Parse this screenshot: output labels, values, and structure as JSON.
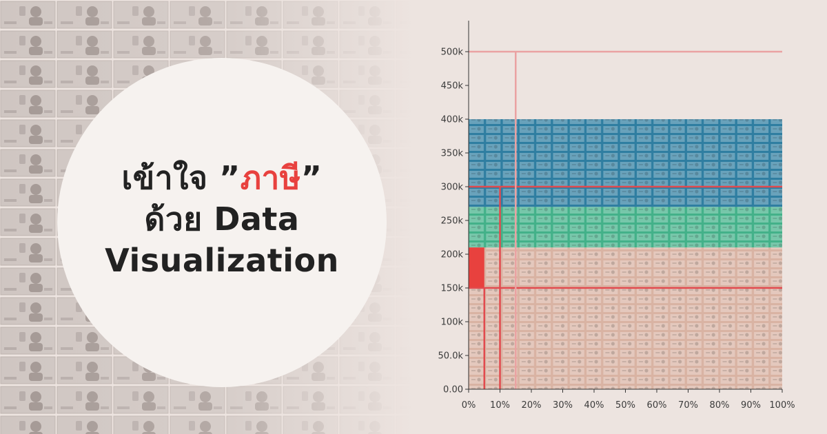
{
  "headline": {
    "line1_prefix": "เข้าใจ ”",
    "line1_accent": "ภาษี",
    "line1_suffix": "”",
    "line2": "ด้วย Data",
    "line3": "Visualization"
  },
  "colors": {
    "background": "#ede4e0",
    "circle": "#f6f2ef",
    "headline_text": "#222222",
    "accent_red": "#e8413e",
    "band_blue": "#2f7ea1",
    "band_green": "#43b189",
    "band_pink": "#d9b3a3",
    "grid_line": "#e24a4e",
    "grid_line_light": "#eaa2a2"
  },
  "chart_data": {
    "type": "area",
    "ylim": [
      0,
      500000
    ],
    "xlim": [
      0,
      100
    ],
    "y_ticks": [
      "0.00",
      "50.0k",
      "100k",
      "150k",
      "200k",
      "250k",
      "300k",
      "350k",
      "400k",
      "450k",
      "500k"
    ],
    "x_ticks": [
      "0%",
      "10%",
      "20%",
      "30%",
      "40%",
      "50%",
      "60%",
      "70%",
      "80%",
      "90%",
      "100%"
    ],
    "bands": [
      {
        "from": 0,
        "to": 210000,
        "color": "#d9b3a3"
      },
      {
        "from": 210000,
        "to": 270000,
        "color": "#43b189"
      },
      {
        "from": 270000,
        "to": 400000,
        "color": "#2f7ea1"
      }
    ],
    "brackets": [
      {
        "y": 150000,
        "x_pct": 5,
        "color": "#e24a4e"
      },
      {
        "y": 300000,
        "x_pct": 10,
        "color": "#e24a4e"
      },
      {
        "y": 500000,
        "x_pct": 15,
        "color": "#eaa2a2"
      }
    ],
    "red_fill": {
      "y_from": 150000,
      "y_to": 210000,
      "x_pct": 5,
      "color": "#e8413e"
    },
    "grid": false,
    "legend": "none"
  }
}
